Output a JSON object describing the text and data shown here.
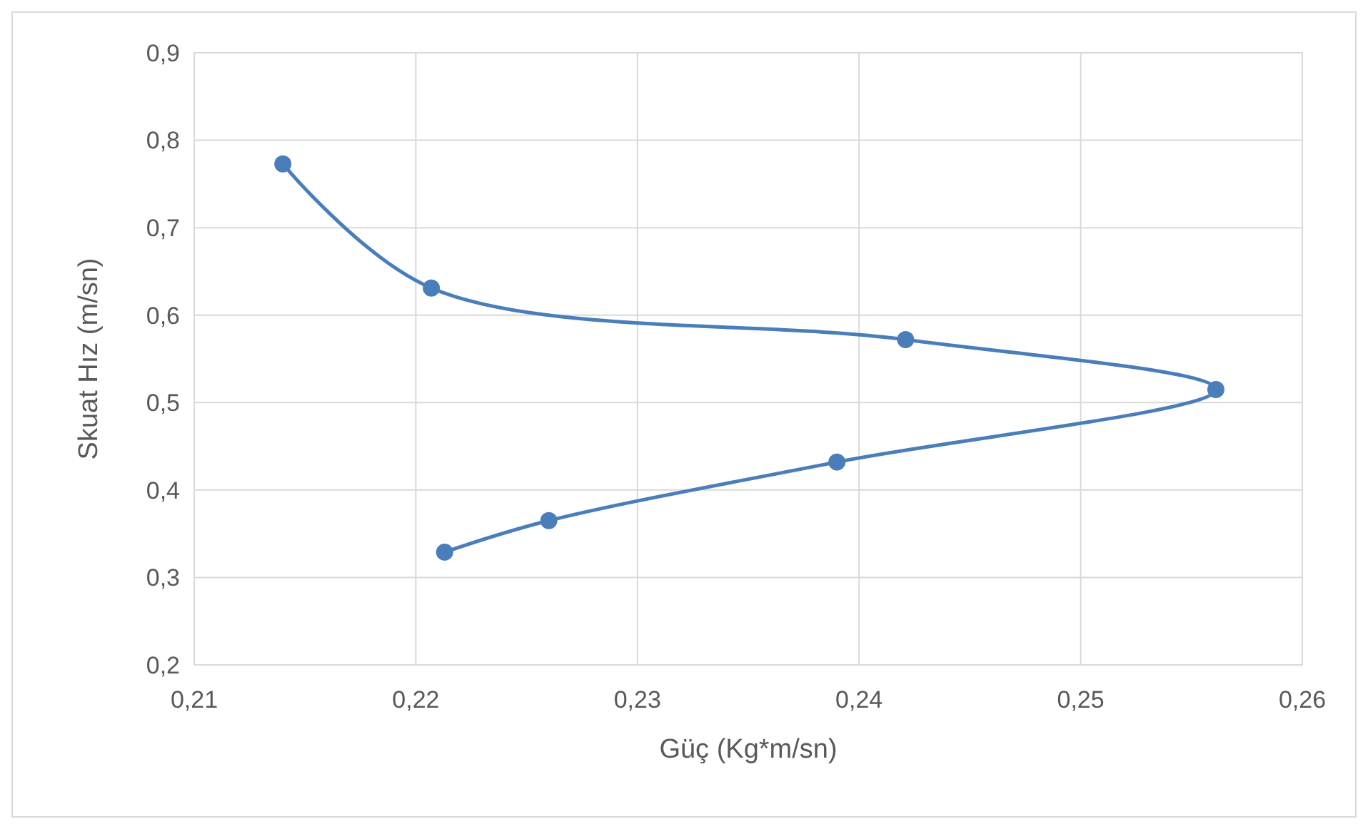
{
  "chart_data": {
    "type": "line",
    "xlabel": "Güç (Kg*m/sn)",
    "ylabel": "Skuat Hız (m/sn)",
    "series": [
      {
        "color": "#4a7ebb",
        "x": [
          0.214,
          0.2207,
          0.2421,
          0.2561,
          0.239,
          0.226,
          0.2213
        ],
        "values": [
          0.773,
          0.631,
          0.572,
          0.515,
          0.432,
          0.365,
          0.329
        ]
      }
    ],
    "xlim": [
      0.21,
      0.26
    ],
    "xticks": [
      {
        "value": 0.21,
        "label": "0,21"
      },
      {
        "value": 0.22,
        "label": "0,22"
      },
      {
        "value": 0.23,
        "label": "0,23"
      },
      {
        "value": 0.24,
        "label": "0,24"
      },
      {
        "value": 0.25,
        "label": "0,25"
      },
      {
        "value": 0.26,
        "label": "0,26"
      }
    ],
    "ylim": [
      0.2,
      0.9
    ],
    "yticks": [
      {
        "value": 0.2,
        "label": "0,2"
      },
      {
        "value": 0.3,
        "label": "0,3"
      },
      {
        "value": 0.4,
        "label": "0,4"
      },
      {
        "value": 0.5,
        "label": "0,5"
      },
      {
        "value": 0.6,
        "label": "0,6"
      },
      {
        "value": 0.7,
        "label": "0,7"
      },
      {
        "value": 0.8,
        "label": "0,8"
      },
      {
        "value": 0.9,
        "label": "0,9"
      }
    ],
    "grid": true,
    "marker": "circle",
    "line_style": "solid"
  }
}
